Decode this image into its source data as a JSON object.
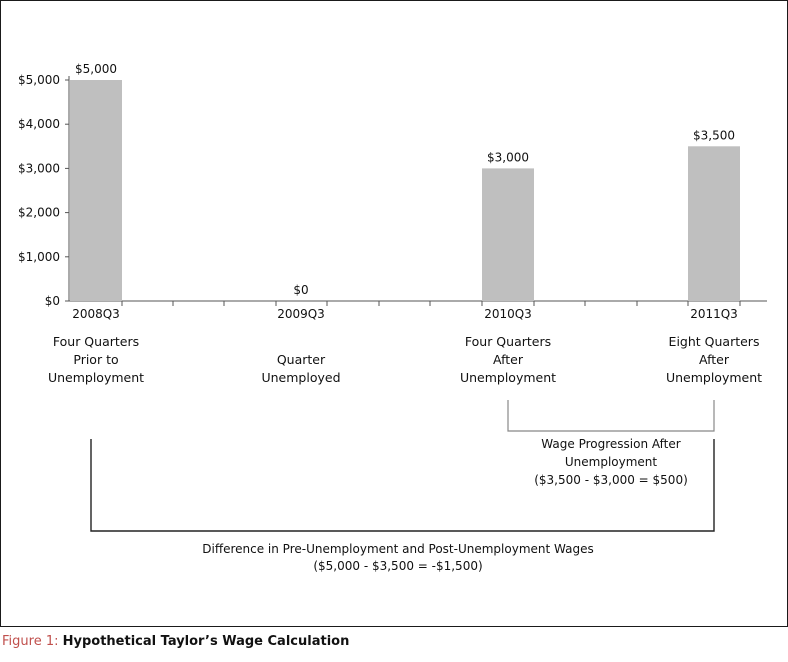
{
  "caption": {
    "prefix": "Figure 1:",
    "title": "Hypothetical Taylor’s Wage Calculation"
  },
  "colors": {
    "bar": "#bfbfbf",
    "axis": "#555555",
    "bracket": "#222222",
    "bracket_light": "#888888",
    "caption_prefix": "#c0504d"
  },
  "chart_data": {
    "type": "bar",
    "title": "",
    "xlabel": "",
    "ylabel": "",
    "categories": [
      "2008Q3",
      "2009Q3",
      "2010Q3",
      "2011Q3"
    ],
    "values": [
      5000,
      0,
      3000,
      3500
    ],
    "value_labels": [
      "$5,000",
      "$0",
      "$3,000",
      "$3,500"
    ],
    "ylim": [
      0,
      5000
    ],
    "yticks": [
      0,
      1000,
      2000,
      3000,
      4000,
      5000
    ],
    "ytick_labels": [
      "$0",
      "$1,000",
      "$2,000",
      "$3,000",
      "$4,000",
      "$5,000"
    ],
    "grid": false,
    "category_descriptions": [
      [
        "Four Quarters",
        "Prior to",
        "Unemployment"
      ],
      [
        "Quarter",
        "Unemployed"
      ],
      [
        "Four Quarters",
        "After",
        "Unemployment"
      ],
      [
        "Eight Quarters",
        "After",
        "Unemployment"
      ]
    ],
    "annotations": [
      {
        "from_category": "2010Q3",
        "to_category": "2011Q3",
        "lines": [
          "Wage Progression After",
          "Unemployment",
          "($3,500 - $3,000 = $500)"
        ]
      },
      {
        "from_category": "2008Q3",
        "to_category": "2011Q3",
        "lines": [
          "Difference in Pre-Unemployment and Post-Unemployment Wages",
          "($5,000 - $3,500 = -$1,500)"
        ]
      }
    ]
  }
}
